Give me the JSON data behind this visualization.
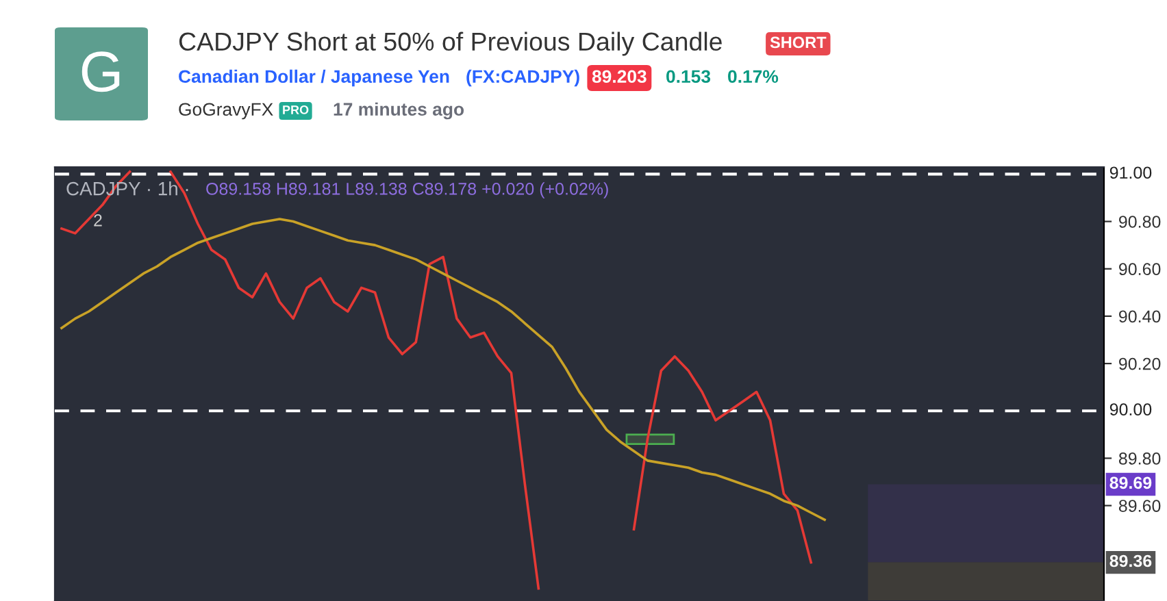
{
  "chart_data": {
    "type": "line",
    "title": "CADJPY Short at 50% of Previous Daily Candle",
    "annotations": [
      "SHORT",
      "Canadian Dollar / Japanese Yen",
      "(FX:CADJPY)",
      "89.203",
      "0.153",
      "0.17%",
      "GoGravyFX",
      "PRO",
      "17 minutes ago",
      "G",
      "CADJPY · 1h ·",
      "O89.158 H89.181 L89.138 C89.178 +0.020 (+0.02%)",
      "2"
    ],
    "series": [
      {
        "color": "#e53935",
        "values": [
          90.77,
          90.75,
          90.81,
          90.87,
          90.95,
          91.01,
          null,
          null,
          91.01,
          90.92,
          90.79,
          90.68,
          90.64,
          90.52,
          90.48,
          90.58,
          90.46,
          90.39,
          90.52,
          90.56,
          90.46,
          90.42,
          90.52,
          90.5,
          90.31,
          90.24,
          90.29,
          90.62,
          90.65,
          90.39,
          90.31,
          90.33,
          90.23,
          90.16,
          89.69,
          89.25,
          null,
          null,
          null,
          null,
          null,
          null,
          89.5,
          89.88,
          90.17,
          90.23,
          90.17,
          90.08,
          89.96,
          90.0,
          90.04,
          90.08,
          89.96,
          89.65,
          89.58,
          89.36,
          null,
          null,
          null,
          null,
          null,
          null,
          null,
          null,
          null,
          null,
          null,
          null,
          null,
          null,
          null,
          null,
          null,
          null,
          null,
          null,
          null
        ]
      },
      {
        "color": "#c9a227",
        "values": [
          90.35,
          90.39,
          90.42,
          90.46,
          90.5,
          90.54,
          90.58,
          90.61,
          90.65,
          90.68,
          90.71,
          90.73,
          90.75,
          90.77,
          90.79,
          90.8,
          90.81,
          90.8,
          90.78,
          90.76,
          90.74,
          90.72,
          90.71,
          90.7,
          90.68,
          90.66,
          90.64,
          90.61,
          90.58,
          90.55,
          90.52,
          90.49,
          90.46,
          90.42,
          90.37,
          90.32,
          90.27,
          90.18,
          90.08,
          90.0,
          89.92,
          89.87,
          89.83,
          89.79,
          89.78,
          89.77,
          89.76,
          89.74,
          89.73,
          89.71,
          89.69,
          89.67,
          89.65,
          89.62,
          89.6,
          89.57,
          89.54,
          null,
          null,
          null,
          null,
          null,
          null,
          null,
          null,
          null,
          null,
          null,
          null,
          null,
          null,
          null,
          null,
          null,
          null,
          null,
          null
        ]
      }
    ],
    "categories": [
      null,
      null,
      null,
      null,
      null,
      null,
      null,
      null,
      null,
      null,
      null,
      null,
      null,
      null,
      null,
      null,
      null,
      null,
      null,
      null,
      null,
      null,
      null,
      null,
      null,
      null,
      null,
      null,
      null,
      null,
      null,
      null,
      null,
      null,
      null,
      null,
      null,
      null,
      null,
      null,
      null,
      null,
      null,
      null,
      null,
      null,
      null,
      null,
      null,
      null,
      null,
      null,
      null,
      null,
      null,
      null,
      null,
      null,
      null,
      null,
      null,
      null,
      null,
      null,
      null,
      null,
      null,
      null,
      null,
      null,
      null,
      null,
      null,
      null,
      null,
      null,
      null
    ],
    "ylim": [
      89.197,
      91.03
    ],
    "yticks": [
      {
        "value": 89.6,
        "label": "89.60"
      },
      {
        "value": 89.8,
        "label": "89.80"
      },
      {
        "value": 90.2,
        "label": "90.20"
      },
      {
        "value": 90.4,
        "label": "90.40"
      },
      {
        "value": 90.6,
        "label": "90.60"
      },
      {
        "value": 90.8,
        "label": "90.80"
      }
    ],
    "tick_labels": "y",
    "ref_lines": [
      {
        "axis": "y",
        "value": 91.0,
        "label": "91.00",
        "color": "#ffffff",
        "line_style": "dashed"
      },
      {
        "axis": "y",
        "value": 90.0,
        "label": "90.00",
        "color": "#ffffff",
        "line_style": "dashed"
      }
    ],
    "bands": [
      {
        "axis": "y",
        "from": 89.36,
        "to": 89.69,
        "label": "89.69",
        "color": "#33304a"
      },
      {
        "axis": "y",
        "from": 89.197,
        "to": 89.36,
        "label": "89.36",
        "color": "#3e3c38"
      },
      {
        "axis": "y",
        "from": 89.86,
        "to": 89.9,
        "label": null,
        "color": "#4caf50"
      }
    ],
    "grid": false,
    "legend": false,
    "marker": "none",
    "line_style": "solid"
  }
}
